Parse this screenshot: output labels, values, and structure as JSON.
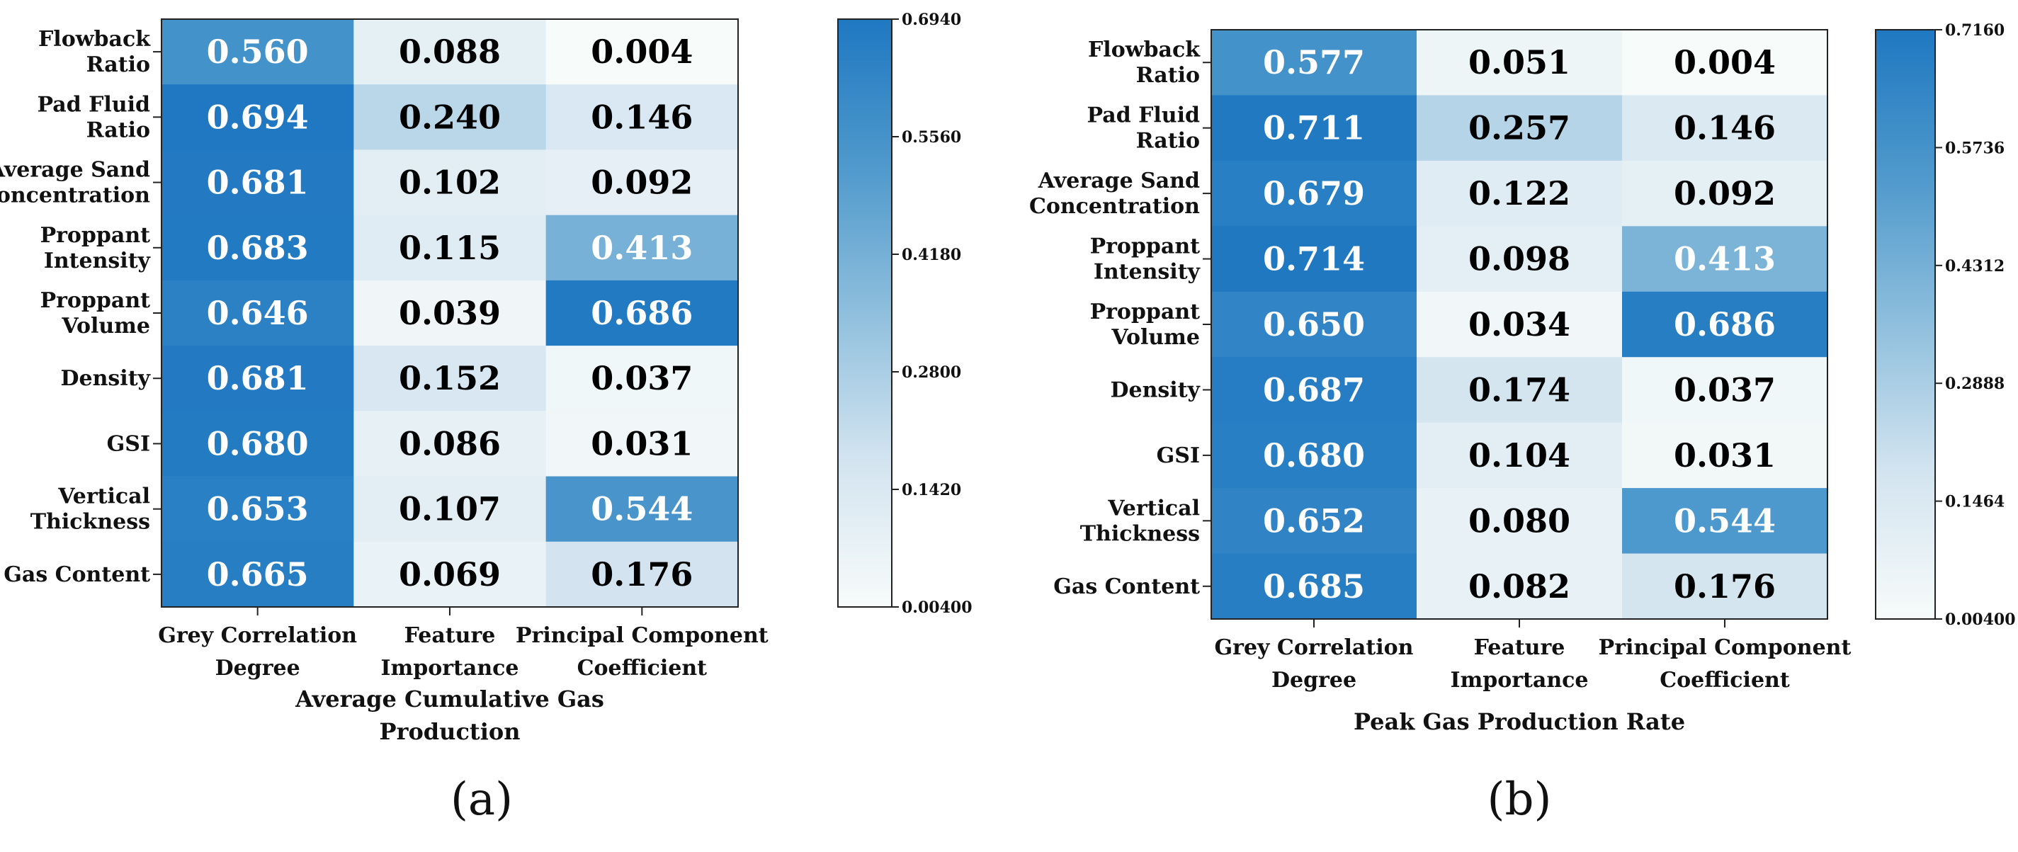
{
  "colors": {
    "low": "#f7fbfa",
    "high": "#1f78c1",
    "light_text": "#ffffff",
    "dark_text": "#000000"
  },
  "chart_data": [
    {
      "type": "heatmap",
      "panel_label": "(a)",
      "xlabel": "Average Cumulative Gas Production",
      "rows": [
        [
          "Flowback",
          "Ratio"
        ],
        [
          "Pad Fluid",
          "Ratio"
        ],
        [
          "Average Sand",
          "Concentration"
        ],
        [
          "Proppant",
          "Intensity"
        ],
        [
          "Proppant",
          "Volume"
        ],
        [
          "Density"
        ],
        [
          "GSI"
        ],
        [
          "Vertical",
          "Thickness"
        ],
        [
          "Gas Content"
        ]
      ],
      "columns": [
        [
          "Grey Correlation",
          "Degree"
        ],
        [
          "Feature",
          "Importance"
        ],
        [
          "Principal Component",
          "Coefficient"
        ]
      ],
      "values": [
        [
          "0.560",
          "0.088",
          "0.004"
        ],
        [
          "0.694",
          "0.240",
          "0.146"
        ],
        [
          "0.681",
          "0.102",
          "0.092"
        ],
        [
          "0.683",
          "0.115",
          "0.413"
        ],
        [
          "0.646",
          "0.039",
          "0.686"
        ],
        [
          "0.681",
          "0.152",
          "0.037"
        ],
        [
          "0.680",
          "0.086",
          "0.031"
        ],
        [
          "0.653",
          "0.107",
          "0.544"
        ],
        [
          "0.665",
          "0.069",
          "0.176"
        ]
      ],
      "colorbar": {
        "min": 0.004,
        "max": 0.694,
        "ticks": [
          "0.6940",
          "0.5560",
          "0.4180",
          "0.2800",
          "0.1420",
          "0.00400"
        ]
      }
    },
    {
      "type": "heatmap",
      "panel_label": "(b)",
      "xlabel": "Peak Gas Production Rate",
      "rows": [
        [
          "Flowback",
          "Ratio"
        ],
        [
          "Pad Fluid",
          "Ratio"
        ],
        [
          "Average Sand",
          "Concentration"
        ],
        [
          "Proppant",
          "Intensity"
        ],
        [
          "Proppant",
          "Volume"
        ],
        [
          "Density"
        ],
        [
          "GSI"
        ],
        [
          "Vertical",
          "Thickness"
        ],
        [
          "Gas Content"
        ]
      ],
      "columns": [
        [
          "Grey Correlation",
          "Degree"
        ],
        [
          "Feature",
          "Importance"
        ],
        [
          "Principal Component",
          "Coefficient"
        ]
      ],
      "values": [
        [
          "0.577",
          "0.051",
          "0.004"
        ],
        [
          "0.711",
          "0.257",
          "0.146"
        ],
        [
          "0.679",
          "0.122",
          "0.092"
        ],
        [
          "0.714",
          "0.098",
          "0.413"
        ],
        [
          "0.650",
          "0.034",
          "0.686"
        ],
        [
          "0.687",
          "0.174",
          "0.037"
        ],
        [
          "0.680",
          "0.104",
          "0.031"
        ],
        [
          "0.652",
          "0.080",
          "0.544"
        ],
        [
          "0.685",
          "0.082",
          "0.176"
        ]
      ],
      "colorbar": {
        "min": 0.004,
        "max": 0.716,
        "ticks": [
          "0.7160",
          "0.5736",
          "0.4312",
          "0.2888",
          "0.1464",
          "0.00400"
        ]
      }
    }
  ]
}
